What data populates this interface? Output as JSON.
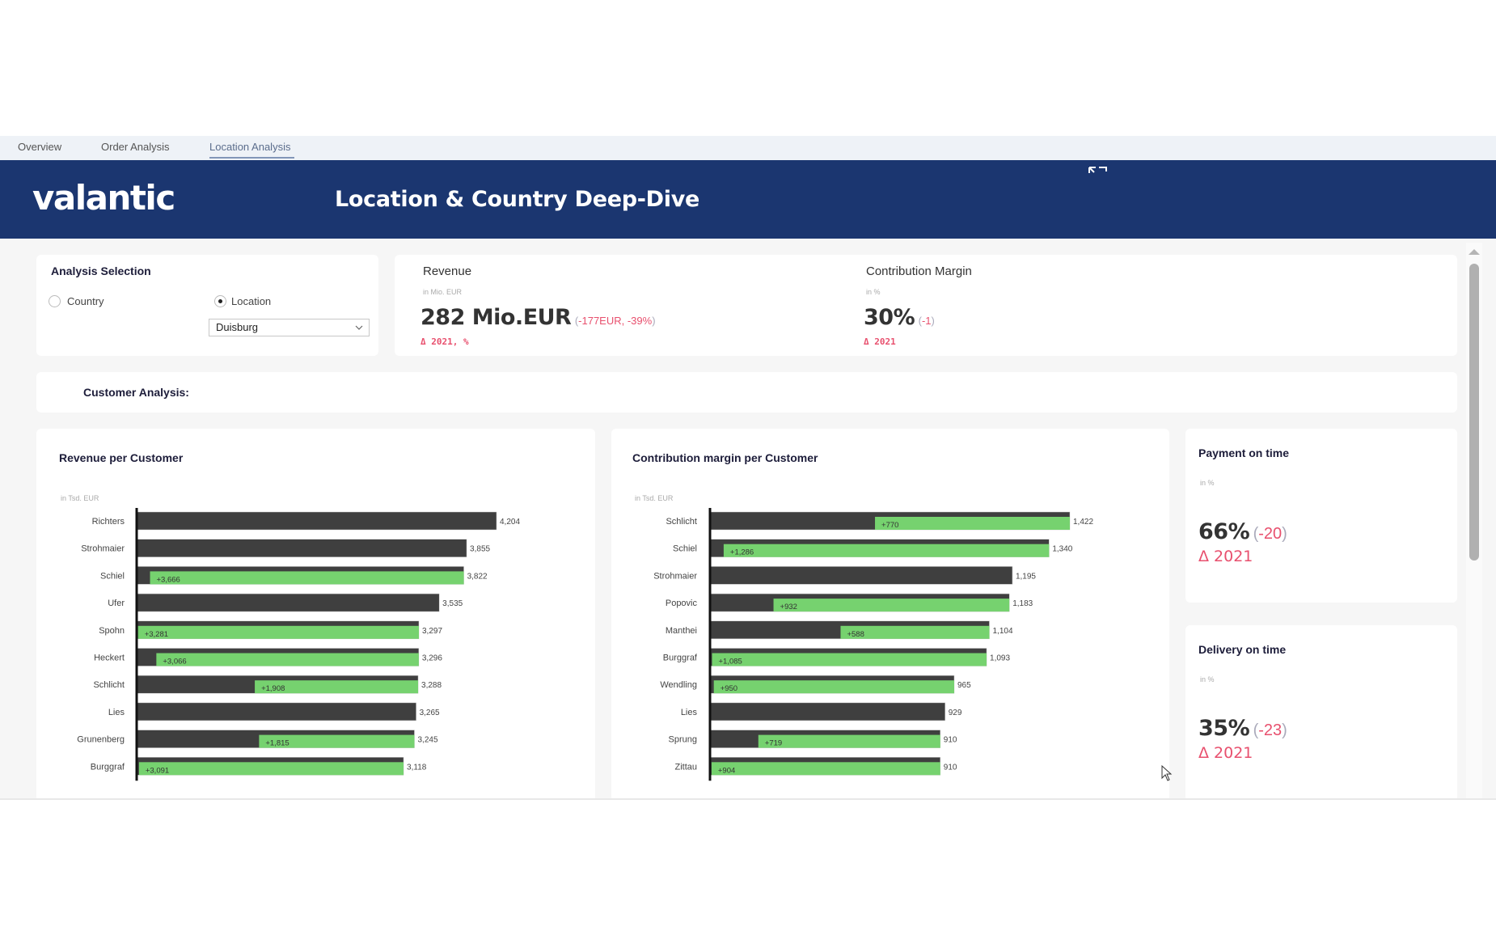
{
  "tabs": [
    {
      "label": "Overview",
      "active": false
    },
    {
      "label": "Order Analysis",
      "active": false
    },
    {
      "label": "Location Analysis",
      "active": true
    }
  ],
  "header": {
    "logo": "valantic",
    "title": "Location & Country Deep-Dive",
    "exit_fullscreen_icon": "exit-fullscreen-icon"
  },
  "analysis_selection": {
    "title": "Analysis Selection",
    "options": [
      {
        "label": "Country",
        "checked": false
      },
      {
        "label": "Location",
        "checked": true
      }
    ],
    "dropdown_value": "Duisburg"
  },
  "kpis": {
    "revenue": {
      "label": "Revenue",
      "unit": "in Mio. EUR",
      "value": "282 Mio.EUR",
      "delta_open": "(",
      "delta": "-177EUR, -39%",
      "delta_close": ")",
      "sub": "Δ 2021, %"
    },
    "contribution_margin": {
      "label": "Contribution Margin",
      "unit": "in %",
      "value": "30%",
      "delta_open": "(",
      "delta": "-1",
      "delta_close": ")",
      "sub": "Δ 2021"
    }
  },
  "section": {
    "title": "Customer Analysis:"
  },
  "side_cards": {
    "payment": {
      "title": "Payment on time",
      "unit": "in %",
      "value": "66%",
      "delta_open": "(",
      "delta": "-20",
      "delta_close": ")",
      "sub": "Δ 2021"
    },
    "delivery": {
      "title": "Delivery on time",
      "unit": "in %",
      "value": "35%",
      "delta_open": "(",
      "delta": "-23",
      "delta_close": ")",
      "sub": "Δ 2021"
    }
  },
  "colors": {
    "header_bg": "#1b3670",
    "bar_base": "#3f3f3f",
    "bar_delta": "#76d26f",
    "negative": "#e8506e"
  },
  "chart_data": [
    {
      "type": "bar",
      "orientation": "horizontal",
      "title": "Revenue per Customer",
      "unit_label": "in Tsd. EUR",
      "xlabel": "",
      "ylabel": "",
      "grid": false,
      "categories": [
        "Richters",
        "Strohmaier",
        "Schiel",
        "Ufer",
        "Spohn",
        "Heckert",
        "Schlicht",
        "Lies",
        "Grunenberg",
        "Burggraf"
      ],
      "values": [
        4204,
        3855,
        3822,
        3535,
        3297,
        3296,
        3288,
        3265,
        3245,
        3118
      ],
      "deltas": [
        null,
        null,
        3666,
        null,
        3281,
        3066,
        1908,
        null,
        1815,
        3091
      ],
      "xlim": [
        0,
        4204
      ]
    },
    {
      "type": "bar",
      "orientation": "horizontal",
      "title": "Contribution margin per Customer",
      "unit_label": "in Tsd. EUR",
      "xlabel": "",
      "ylabel": "",
      "grid": false,
      "categories": [
        "Schlicht",
        "Schiel",
        "Strohmaier",
        "Popovic",
        "Manthei",
        "Burggraf",
        "Wendling",
        "Lies",
        "Sprung",
        "Zittau"
      ],
      "values": [
        1422,
        1340,
        1195,
        1183,
        1104,
        1093,
        965,
        929,
        910,
        910
      ],
      "deltas": [
        770,
        1286,
        null,
        932,
        588,
        1085,
        950,
        null,
        719,
        904
      ],
      "xlim": [
        0,
        1422
      ]
    }
  ]
}
